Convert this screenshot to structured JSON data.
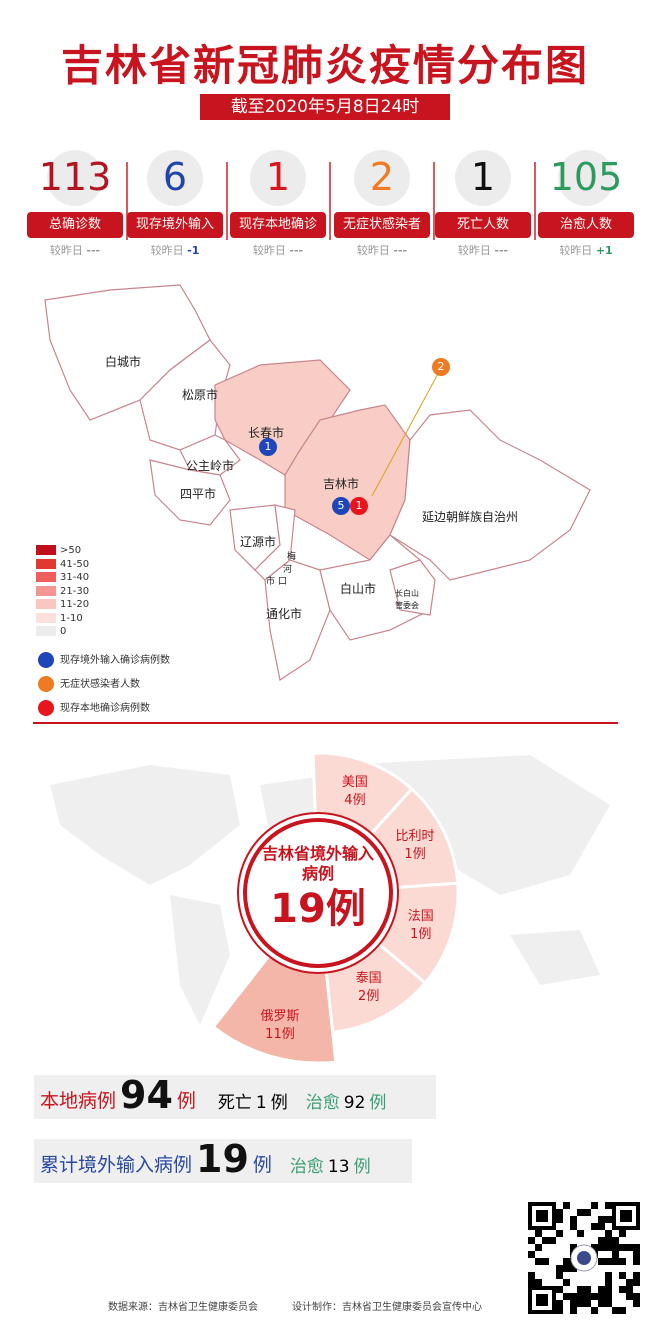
{
  "title": "吉林省新冠肺炎疫情分布图",
  "date": "截至2020年5月8日24时",
  "stats": [
    {
      "value": "113",
      "label": "总确诊数",
      "compare_label": "较昨日",
      "change": "---",
      "color": "#b3141f",
      "change_color": "#999999"
    },
    {
      "value": "6",
      "label": "现存境外输入",
      "compare_label": "较昨日",
      "change": "-1",
      "color": "#1f46a8",
      "change_color": "#1f46a8"
    },
    {
      "value": "1",
      "label": "现存本地确诊",
      "compare_label": "较昨日",
      "change": "---",
      "color": "#d8141e",
      "change_color": "#999999"
    },
    {
      "value": "2",
      "label": "无症状感染者",
      "compare_label": "较昨日",
      "change": "---",
      "color": "#ee7b23",
      "change_color": "#999999"
    },
    {
      "value": "1",
      "label": "死亡人数",
      "compare_label": "较昨日",
      "change": "---",
      "color": "#111111",
      "change_color": "#999999"
    },
    {
      "value": "105",
      "label": "治愈人数",
      "compare_label": "较昨日",
      "change": "+1",
      "color": "#2e9a5e",
      "change_color": "#2e9a5e"
    }
  ],
  "map": {
    "regions": [
      "白城市",
      "松原市",
      "长春市",
      "公主岭市",
      "四平市",
      "吉林市",
      "辽源市",
      "梅",
      "河",
      "口",
      "市",
      "通化市",
      "白山市",
      "长白山",
      "管委会",
      "延边朝鲜族自治州"
    ],
    "markers": {
      "changchun_import": "1",
      "jilin_import": "5",
      "jilin_local": "1",
      "asymptomatic": "2"
    },
    "legend_scale": [
      {
        "label": ">50",
        "color": "#c0101c"
      },
      {
        "label": "41-50",
        "color": "#e0392f"
      },
      {
        "label": "31-40",
        "color": "#ef5e5a"
      },
      {
        "label": "21-30",
        "color": "#f29593"
      },
      {
        "label": "11-20",
        "color": "#f7c7c0"
      },
      {
        "label": "1-10",
        "color": "#fbe0dc"
      },
      {
        "label": "0",
        "color": "#ececec"
      }
    ],
    "legend_markers": [
      {
        "label": "现存境外输入确诊病例数",
        "color": "#1f46b8"
      },
      {
        "label": "无症状感染者人数",
        "color": "#ee7b23"
      },
      {
        "label": "现存本地确诊病例数",
        "color": "#e8141e"
      }
    ]
  },
  "chart_data": {
    "type": "pie",
    "title": "吉林省境外输入病例",
    "total": "19例",
    "categories": [
      "美国",
      "比利时",
      "法国",
      "泰国",
      "俄罗斯"
    ],
    "values": [
      4,
      1,
      1,
      2,
      11
    ],
    "labels": [
      "4例",
      "1例",
      "1例",
      "2例",
      "11例"
    ]
  },
  "summary": {
    "local_label": "本地病例",
    "local_value": "94",
    "unit": "例",
    "death_label": "死亡",
    "death_value": "1",
    "cured_label": "治愈",
    "local_cured": "92",
    "import_label": "累计境外输入病例",
    "import_value": "19",
    "import_cured": "13"
  },
  "footer": {
    "source": "数据来源：吉林省卫生健康委员会",
    "design": "设计制作：吉林省卫生健康委员会宣传中心"
  }
}
